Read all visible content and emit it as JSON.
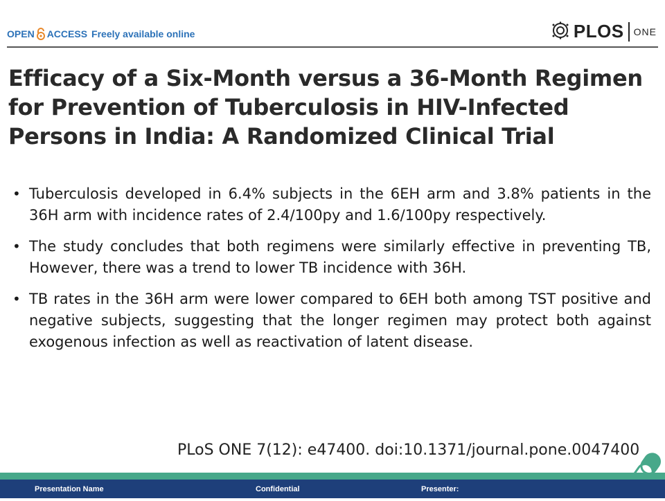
{
  "header": {
    "open_label": "OPEN",
    "access_label": "ACCESS",
    "free_label": "Freely available online",
    "publisher": "PLOS",
    "journal": "ONE"
  },
  "title": "Efficacy of a Six-Month versus a 36-Month Regimen for Prevention of Tuberculosis in HIV-Infected Persons in India: A Randomized Clinical Trial",
  "bullets": [
    "Tuberculosis developed in 6.4% subjects in the 6EH arm and 3.8% patients in the 36H arm with incidence rates of 2.4/100py and 1.6/100py respectively.",
    "The study concludes that both regimens were similarly effective in preventing TB, However, there was a trend to lower TB incidence with 36H.",
    "TB rates in the 36H arm were lower compared to 6EH both among TST positive and negative subjects, suggesting that the longer regimen may protect both against exogenous infection as well as reactivation of latent disease."
  ],
  "citation": "PLoS ONE 7(12): e47400. doi:10.1371/journal.pone.0047400",
  "footer": {
    "presentation_name": "Presentation Name",
    "confidential": "Confidential",
    "presenter": "Presenter:"
  },
  "colors": {
    "open_access_blue": "#2c72b8",
    "footer_navy": "#1e3f7a",
    "footer_green": "#47a88a"
  }
}
